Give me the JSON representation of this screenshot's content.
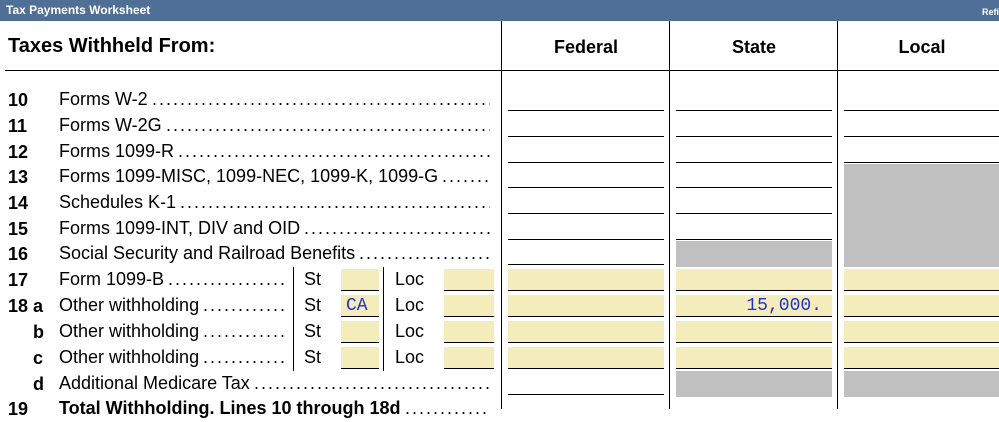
{
  "window": {
    "title": "Tax Payments Worksheet",
    "right_label": "Refi"
  },
  "header": {
    "title": "Taxes Withheld From:",
    "columns": [
      "Federal",
      "State",
      "Local"
    ]
  },
  "rows": [
    {
      "num": "10",
      "label": "Forms W-2"
    },
    {
      "num": "11",
      "label": "Forms W-2G"
    },
    {
      "num": "12",
      "label": "Forms 1099-R"
    },
    {
      "num": "13",
      "label": "Forms 1099-MISC, 1099-NEC, 1099-K, 1099-G"
    },
    {
      "num": "14",
      "label": "Schedules K-1"
    },
    {
      "num": "15",
      "label": "Forms 1099-INT, DIV and OID"
    },
    {
      "num": "16",
      "label": "Social Security and Railroad Benefits"
    },
    {
      "num": "17",
      "label": "Form 1099-B",
      "st_label": "St",
      "st_value": "",
      "loc_label": "Loc",
      "loc_value": ""
    },
    {
      "num": "18 a",
      "label": "Other withholding",
      "st_label": "St",
      "st_value": "CA",
      "loc_label": "Loc",
      "loc_value": "",
      "state_value": "15,000."
    },
    {
      "num": "b",
      "label": "Other withholding",
      "st_label": "St",
      "st_value": "",
      "loc_label": "Loc",
      "loc_value": ""
    },
    {
      "num": "c",
      "label": "Other withholding",
      "st_label": "St",
      "st_value": "",
      "loc_label": "Loc",
      "loc_value": ""
    },
    {
      "num": "d",
      "label": "Additional Medicare Tax"
    },
    {
      "num": "19",
      "label": "Total Withholding. Lines 10 through 18d"
    }
  ]
}
